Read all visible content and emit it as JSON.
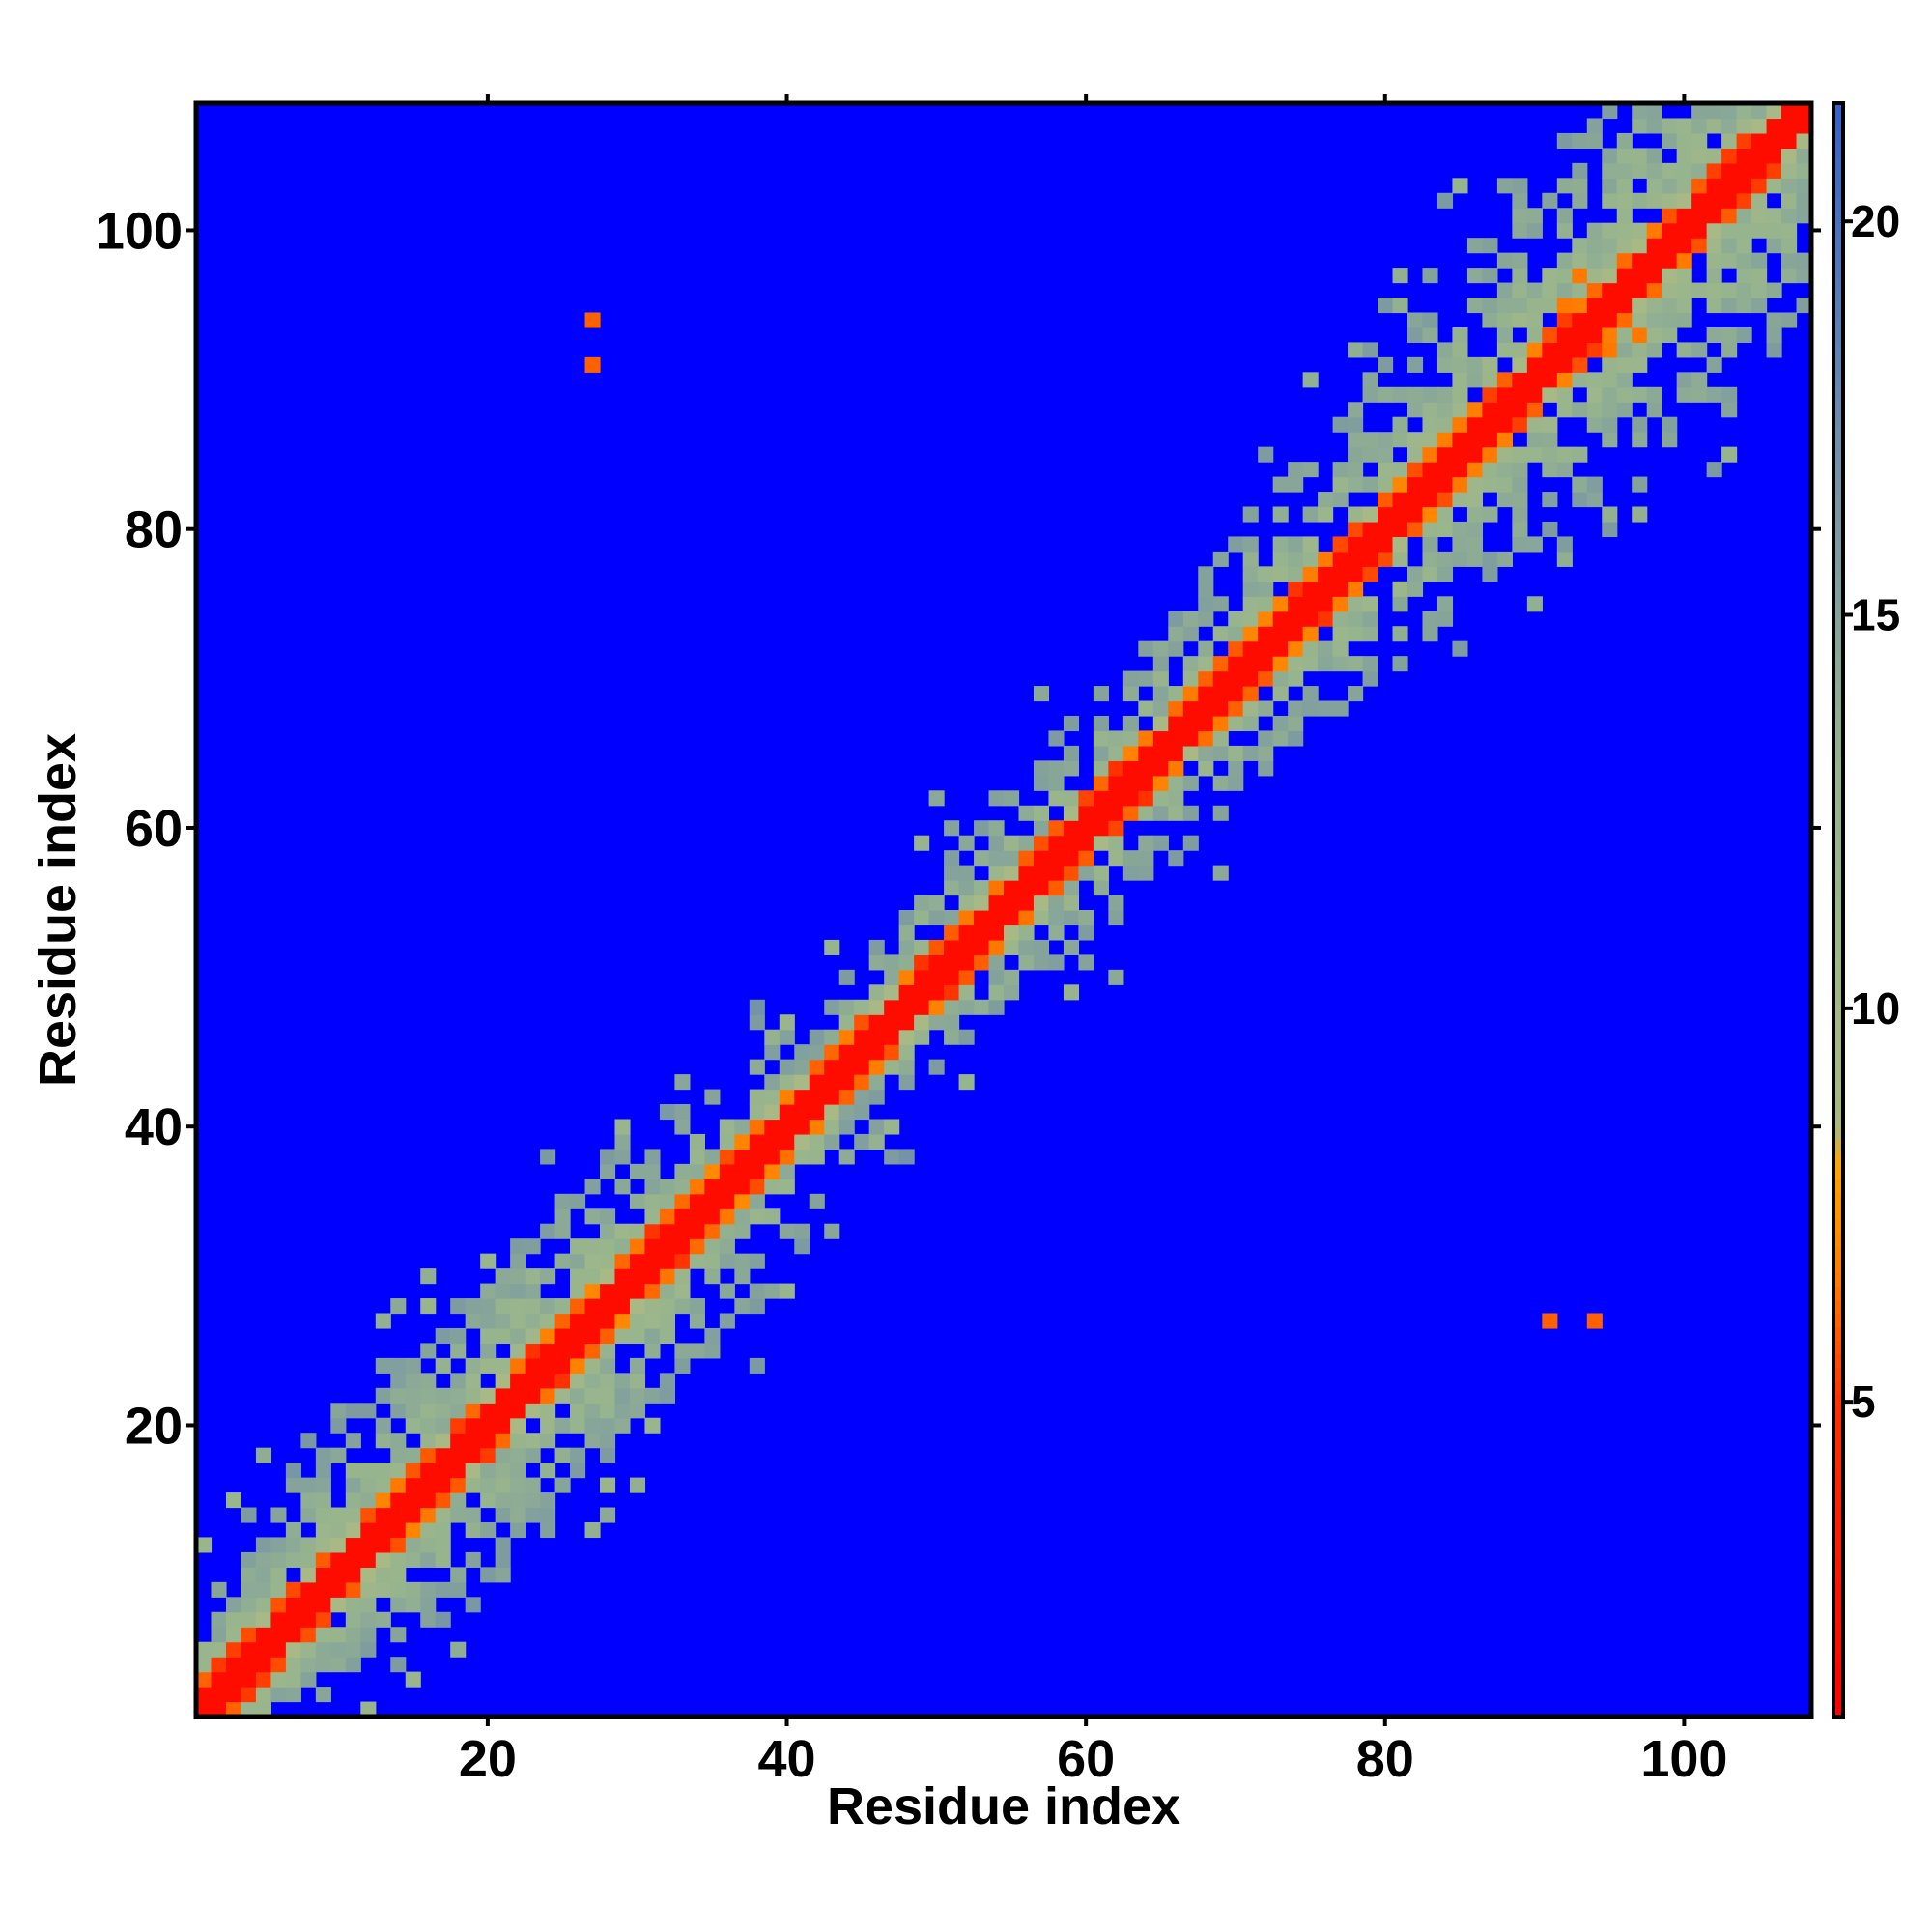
{
  "chart_data": {
    "type": "heatmap",
    "description_note": "",
    "xlabel": "Residue index",
    "ylabel": "Residue index",
    "n": 108,
    "xlim": [
      0.5,
      108.5
    ],
    "ylim": [
      0.5,
      108.5
    ],
    "x_ticks": [
      20,
      40,
      60,
      80,
      100
    ],
    "y_ticks": [
      20,
      40,
      60,
      80,
      100
    ],
    "colorbar": {
      "min": 1,
      "max": 21.5,
      "ticks": [
        5,
        10,
        15,
        20
      ],
      "stops": [
        {
          "value": 1.0,
          "color": "#ff0000"
        },
        {
          "value": 5.0,
          "color": "#ff3000"
        },
        {
          "value": 6.5,
          "color": "#ff7800"
        },
        {
          "value": 8.0,
          "color": "#ffa500"
        },
        {
          "value": 8.5,
          "color": "#a9b985"
        },
        {
          "value": 13.0,
          "color": "#96b48e"
        },
        {
          "value": 17.0,
          "color": "#7391a8"
        },
        {
          "value": 21.5,
          "color": "#3a5fc8"
        }
      ]
    },
    "background_value": "> 21.5",
    "background_color": "#0000ff",
    "band": {
      "core_halfwidth": 1,
      "near_halfwidth": 2,
      "wide_halfwidth_profile": [
        {
          "residue": 1,
          "halfwidth": 7
        },
        {
          "residue": 15,
          "halfwidth": 10
        },
        {
          "residue": 28,
          "halfwidth": 11
        },
        {
          "residue": 45,
          "halfwidth": 6
        },
        {
          "residue": 55,
          "halfwidth": 8
        },
        {
          "residue": 70,
          "halfwidth": 9
        },
        {
          "residue": 85,
          "halfwidth": 12
        },
        {
          "residue": 95,
          "halfwidth": 15
        },
        {
          "residue": 108,
          "halfwidth": 12
        }
      ]
    },
    "contact_hotspots": [
      {
        "x": 14,
        "y": 16,
        "value": 6.5
      },
      {
        "x": 16,
        "y": 14,
        "value": 6.5
      },
      {
        "x": 34,
        "y": 36,
        "value": 6.5
      },
      {
        "x": 36,
        "y": 34,
        "value": 6.5
      },
      {
        "x": 52,
        "y": 54,
        "value": 6.5
      },
      {
        "x": 54,
        "y": 52,
        "value": 6.5
      },
      {
        "x": 97,
        "y": 93,
        "value": 6.5
      },
      {
        "x": 93,
        "y": 97,
        "value": 6.5
      },
      {
        "x": 92,
        "y": 95,
        "value": 6.5
      },
      {
        "x": 95,
        "y": 92,
        "value": 6.5
      }
    ],
    "isolated_contacts": [
      {
        "x": 27,
        "y": 91,
        "value": 6.0
      },
      {
        "x": 27,
        "y": 94,
        "value": 6.0
      },
      {
        "x": 91,
        "y": 27,
        "value": 6.0
      },
      {
        "x": 94,
        "y": 27,
        "value": 6.0
      }
    ]
  }
}
